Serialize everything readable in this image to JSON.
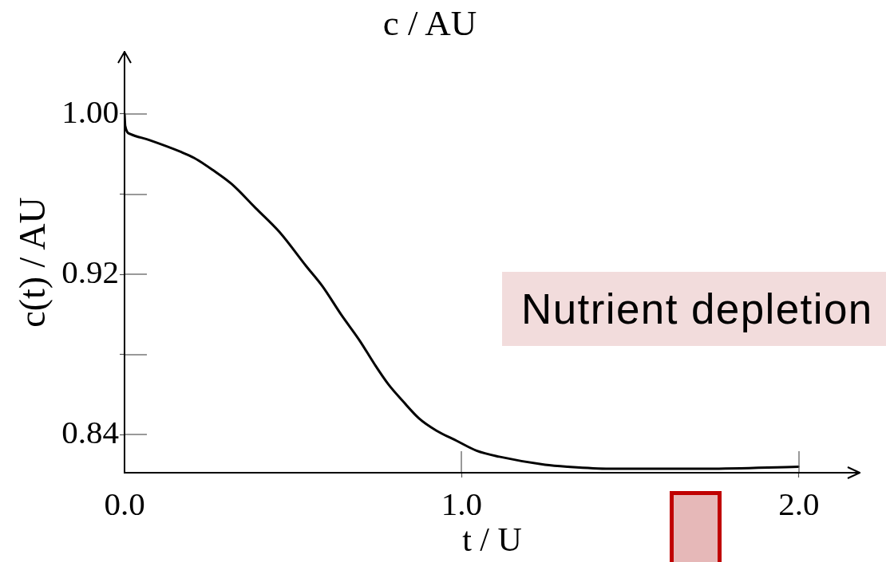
{
  "chart_data": {
    "type": "line",
    "title": "c / AU",
    "xlabel": "t / U",
    "ylabel": "c(t) / AU",
    "annotations": [
      "Nutrient depletion"
    ],
    "x": [
      0,
      0.002,
      0.017,
      0.073,
      0.168,
      0.207,
      0.262,
      0.318,
      0.389,
      0.46,
      0.539,
      0.587,
      0.642,
      0.697,
      0.742,
      0.783,
      0.824,
      0.874,
      0.925,
      0.984,
      1.044,
      1.111,
      1.247,
      1.314,
      1.441,
      1.729,
      1.998
    ],
    "series": [
      {
        "color": "#000000",
        "values": [
          1.0,
          0.994,
          0.99,
          0.987,
          0.981,
          0.978,
          0.972,
          0.965,
          0.953,
          0.941,
          0.924,
          0.914,
          0.9,
          0.887,
          0.875,
          0.865,
          0.857,
          0.848,
          0.842,
          0.837,
          0.832,
          0.829,
          0.825,
          0.824,
          0.823,
          0.823,
          0.824
        ]
      }
    ],
    "xlim": [
      0,
      2.18
    ],
    "ylim": [
      0.821,
      1.031
    ],
    "xticks": [
      {
        "value": 0,
        "label": "0.0"
      },
      {
        "value": 1,
        "label": "1.0"
      },
      {
        "value": 2,
        "label": "2.0"
      }
    ],
    "yticks": [
      {
        "value": 1,
        "label": "1.00"
      },
      {
        "value": 0.96,
        "label": null
      },
      0.92,
      {
        "value": 0.88,
        "label": null
      },
      0.84
    ]
  }
}
